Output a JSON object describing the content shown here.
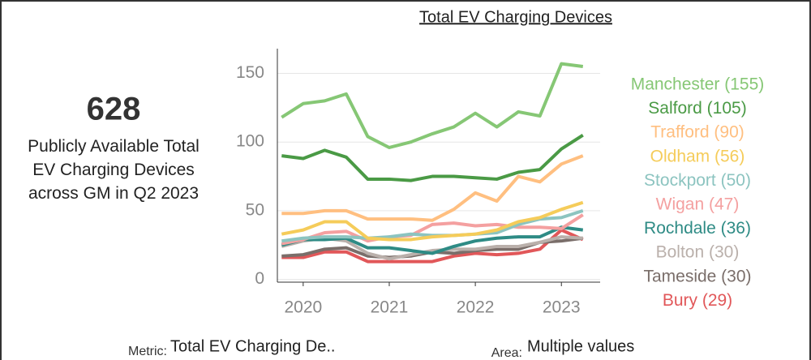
{
  "kpi": {
    "value": "628",
    "description": "Publicly Available Total EV Charging Devices across GM in Q2 2023"
  },
  "filters": [
    {
      "label": "Metric:",
      "value": "Total EV Charging De.."
    },
    {
      "label": "Area:",
      "value": "Multiple values"
    }
  ],
  "chart_data": {
    "type": "line",
    "title": "Total EV Charging Devices",
    "x": [
      2019.75,
      2020,
      2020.25,
      2020.5,
      2020.75,
      2021,
      2021.25,
      2021.5,
      2021.75,
      2022,
      2022.25,
      2022.5,
      2022.75,
      2023,
      2023.25
    ],
    "xlim": [
      2019.7,
      2023.45
    ],
    "xticks": [
      2020,
      2021,
      2022,
      2023
    ],
    "ylim": [
      -2,
      168
    ],
    "yticks": [
      0,
      50,
      100,
      150
    ],
    "grid": true,
    "series": [
      {
        "name": "Manchester (155)",
        "color": "#86c775",
        "values": [
          118,
          128,
          130,
          135,
          104,
          96,
          100,
          106,
          111,
          121,
          111,
          122,
          119,
          157,
          155
        ]
      },
      {
        "name": "Salford (105)",
        "color": "#4a9a45",
        "values": [
          90,
          88,
          94,
          89,
          73,
          73,
          72,
          75,
          75,
          74,
          73,
          78,
          80,
          95,
          105
        ]
      },
      {
        "name": "Trafford (90)",
        "color": "#ffbf80",
        "values": [
          48,
          48,
          50,
          50,
          44,
          44,
          44,
          43,
          51,
          63,
          57,
          75,
          71,
          84,
          90
        ]
      },
      {
        "name": "Oldham (56)",
        "color": "#f5cc5a",
        "values": [
          33,
          36,
          42,
          42,
          30,
          29,
          29,
          31,
          32,
          33,
          36,
          42,
          45,
          51,
          56
        ]
      },
      {
        "name": "Stockport (50)",
        "color": "#8cc4c0",
        "values": [
          28,
          30,
          31,
          31,
          30,
          31,
          33,
          32,
          32,
          33,
          34,
          40,
          44,
          45,
          50
        ]
      },
      {
        "name": "Wigan (47)",
        "color": "#f4a0a0",
        "values": [
          26,
          29,
          34,
          35,
          28,
          31,
          32,
          40,
          41,
          39,
          40,
          38,
          38,
          37,
          47
        ]
      },
      {
        "name": "Rochdale (36)",
        "color": "#2e8b85",
        "values": [
          25,
          29,
          29,
          30,
          23,
          23,
          21,
          19,
          24,
          28,
          30,
          31,
          31,
          38,
          36
        ]
      },
      {
        "name": "Bolton (30)",
        "color": "#bab0ab",
        "values": [
          24,
          28,
          30,
          28,
          19,
          15,
          18,
          21,
          22,
          22,
          24,
          24,
          27,
          31,
          30
        ]
      },
      {
        "name": "Tameside (30)",
        "color": "#7a6e6a",
        "values": [
          17,
          18,
          22,
          23,
          17,
          16,
          17,
          20,
          19,
          21,
          22,
          22,
          27,
          28,
          30
        ]
      },
      {
        "name": "Bury (29)",
        "color": "#e15759",
        "values": [
          16,
          16,
          20,
          20,
          13,
          13,
          13,
          13,
          17,
          19,
          18,
          19,
          22,
          36,
          29
        ]
      }
    ]
  }
}
